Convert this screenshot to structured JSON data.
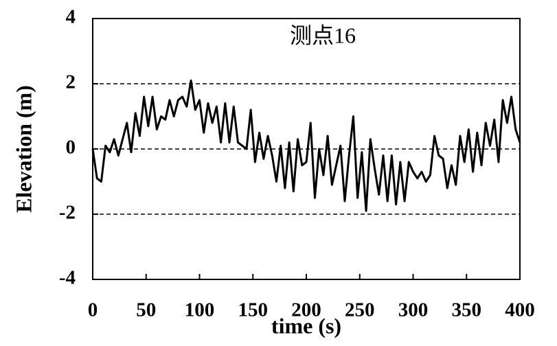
{
  "chart_data": {
    "type": "line",
    "title": "测点16",
    "xlabel": "time (s)",
    "ylabel": "Elevation (m)",
    "x": [
      0,
      4,
      8,
      12,
      16,
      20,
      24,
      28,
      32,
      36,
      40,
      44,
      48,
      52,
      56,
      60,
      64,
      68,
      72,
      76,
      80,
      84,
      88,
      92,
      96,
      100,
      104,
      108,
      112,
      116,
      120,
      124,
      128,
      132,
      136,
      140,
      144,
      148,
      152,
      156,
      160,
      164,
      168,
      172,
      176,
      180,
      184,
      188,
      192,
      196,
      200,
      204,
      208,
      212,
      216,
      220,
      224,
      228,
      232,
      236,
      240,
      244,
      248,
      252,
      256,
      260,
      264,
      268,
      272,
      276,
      280,
      284,
      288,
      292,
      296,
      300,
      304,
      308,
      312,
      316,
      320,
      324,
      328,
      332,
      336,
      340,
      344,
      348,
      352,
      356,
      360,
      364,
      368,
      372,
      376,
      380,
      384,
      388,
      392,
      396,
      400
    ],
    "series": [
      {
        "name": "测点16",
        "color": "#000000",
        "values": [
          0,
          -0.9,
          -1.0,
          0.1,
          -0.1,
          0.3,
          -0.2,
          0.3,
          0.8,
          -0.1,
          1.1,
          0.4,
          1.6,
          0.7,
          1.6,
          0.6,
          1.0,
          0.9,
          1.5,
          1.0,
          1.5,
          1.6,
          1.3,
          2.1,
          1.2,
          1.5,
          0.5,
          1.4,
          0.8,
          1.3,
          0.2,
          1.4,
          0.2,
          1.3,
          0.2,
          0.1,
          0.0,
          1.2,
          -0.4,
          0.5,
          -0.3,
          0.4,
          -0.2,
          -1.0,
          0.1,
          -1.2,
          0.2,
          -1.3,
          0.3,
          -0.5,
          -0.4,
          0.8,
          -1.5,
          0.0,
          -0.8,
          0.4,
          -1.1,
          -0.5,
          0.1,
          -1.6,
          -0.2,
          1.0,
          -1.5,
          -0.1,
          -1.9,
          0.3,
          -0.6,
          -1.4,
          -0.2,
          -1.6,
          -0.2,
          -1.7,
          -0.4,
          -1.6,
          -0.4,
          -0.7,
          -0.9,
          -0.7,
          -1.0,
          -0.8,
          0.4,
          -0.2,
          -0.3,
          -1.2,
          -0.5,
          -1.1,
          0.4,
          -0.4,
          0.6,
          -0.7,
          0.5,
          -0.5,
          0.8,
          0.1,
          0.9,
          -0.4,
          1.5,
          0.8,
          1.6,
          0.6,
          0.2
        ]
      }
    ],
    "xlim": [
      0,
      400
    ],
    "xticks": [
      0,
      50,
      100,
      150,
      200,
      250,
      300,
      350,
      400
    ],
    "ylim": [
      -4,
      4
    ],
    "yticks": [
      -4,
      -2,
      0,
      2,
      4
    ],
    "grid_y": [
      -2,
      0,
      2
    ]
  }
}
